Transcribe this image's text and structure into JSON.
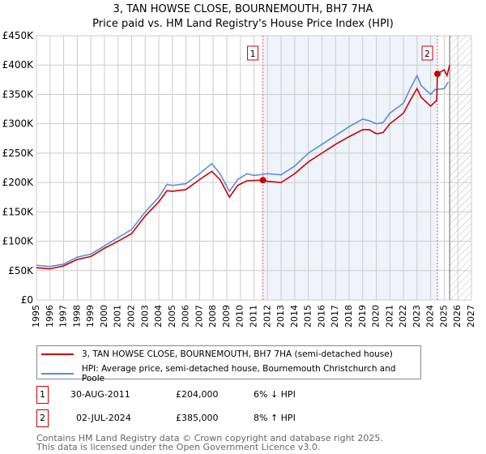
{
  "title": "3, TAN HOWSE CLOSE, BOURNEMOUTH, BH7 7HA",
  "subtitle": "Price paid vs. HM Land Registry's House Price Index (HPI)",
  "chart_data": {
    "type": "line",
    "title": "3, TAN HOWSE CLOSE, BOURNEMOUTH, BH7 7HA - Price paid vs. HM Land Registry's House Price Index (HPI)",
    "xlim": [
      1995,
      2027
    ],
    "ylim": [
      0,
      450000
    ],
    "yticks": [
      {
        "v": 0,
        "label": "£0"
      },
      {
        "v": 50000,
        "label": "£50K"
      },
      {
        "v": 100000,
        "label": "£100K"
      },
      {
        "v": 150000,
        "label": "£150K"
      },
      {
        "v": 200000,
        "label": "£200K"
      },
      {
        "v": 250000,
        "label": "£250K"
      },
      {
        "v": 300000,
        "label": "£300K"
      },
      {
        "v": 350000,
        "label": "£350K"
      },
      {
        "v": 400000,
        "label": "£400K"
      },
      {
        "v": 450000,
        "label": "£450K"
      }
    ],
    "xticks": [
      "1995",
      "1996",
      "1997",
      "1998",
      "1999",
      "2000",
      "2001",
      "2002",
      "2003",
      "2004",
      "2005",
      "2006",
      "2007",
      "2008",
      "2009",
      "2010",
      "2011",
      "2012",
      "2013",
      "2014",
      "2015",
      "2016",
      "2017",
      "2018",
      "2019",
      "2020",
      "2021",
      "2022",
      "2023",
      "2024",
      "2025",
      "2026",
      "2027"
    ],
    "shaded_range": [
      2011.66,
      2024.5
    ],
    "forecast_hatch_from": 2025.4,
    "series": [
      {
        "name": "3, TAN HOWSE CLOSE, BOURNEMOUTH, BH7 7HA (semi-detached house)",
        "color": "#cc0000",
        "x": [
          1995,
          1996,
          1997,
          1998,
          1999,
          2000,
          2001,
          2002,
          2003,
          2004,
          2004.6,
          2005,
          2006,
          2007,
          2007.9,
          2008.5,
          2009.2,
          2009.8,
          2010.5,
          2011.66,
          2012,
          2013,
          2014,
          2015,
          2016,
          2017,
          2018,
          2019,
          2019.5,
          2020,
          2020.5,
          2021,
          2022,
          2022.5,
          2023,
          2023.3,
          2024,
          2024.45,
          2024.5,
          2025,
          2025.2,
          2025.4
        ],
        "y": [
          55000,
          53000,
          58000,
          69000,
          74000,
          88000,
          100000,
          113000,
          143000,
          167000,
          186000,
          185000,
          188000,
          205000,
          219000,
          205000,
          175000,
          195000,
          203000,
          204000,
          202000,
          200000,
          215000,
          235000,
          250000,
          265000,
          278000,
          290000,
          290000,
          283000,
          285000,
          300000,
          318000,
          340000,
          360000,
          345000,
          330000,
          340000,
          385000,
          392000,
          382000,
          400000
        ]
      },
      {
        "name": "HPI: Average price, semi-detached house, Bournemouth Christchurch and Poole",
        "color": "#5b8fd6",
        "x": [
          1995,
          1996,
          1997,
          1998,
          1999,
          2000,
          2001,
          2002,
          2003,
          2004,
          2004.6,
          2005,
          2006,
          2007,
          2007.9,
          2008.5,
          2009.2,
          2009.8,
          2010.5,
          2011,
          2012,
          2013,
          2014,
          2015,
          2016,
          2017,
          2018,
          2019,
          2019.5,
          2020,
          2020.5,
          2021,
          2022,
          2022.5,
          2023,
          2023.3,
          2024,
          2024.3,
          2025,
          2025.3
        ],
        "y": [
          59000,
          57000,
          61000,
          73000,
          78000,
          92000,
          106000,
          120000,
          150000,
          175000,
          197000,
          195000,
          198000,
          215000,
          232000,
          215000,
          185000,
          205000,
          215000,
          212000,
          215000,
          213000,
          228000,
          250000,
          265000,
          280000,
          295000,
          308000,
          305000,
          300000,
          302000,
          318000,
          335000,
          360000,
          382000,
          365000,
          350000,
          358000,
          360000,
          371000
        ]
      }
    ],
    "annotations": [
      {
        "label": "1",
        "x": 2011.66,
        "y": 204000
      },
      {
        "label": "2",
        "x": 2024.5,
        "y": 385000
      }
    ]
  },
  "legend": [
    "3, TAN HOWSE CLOSE, BOURNEMOUTH, BH7 7HA (semi-detached house)",
    "HPI: Average price, semi-detached house, Bournemouth Christchurch and Poole"
  ],
  "sales": [
    {
      "num": "1",
      "date": "30-AUG-2011",
      "price": "£204,000",
      "hpi": "6% ↓ HPI"
    },
    {
      "num": "2",
      "date": "02-JUL-2024",
      "price": "£385,000",
      "hpi": "8% ↑ HPI"
    }
  ],
  "footer": [
    "Contains HM Land Registry data © Crown copyright and database right 2025.",
    "This data is licensed under the Open Government Licence v3.0."
  ]
}
